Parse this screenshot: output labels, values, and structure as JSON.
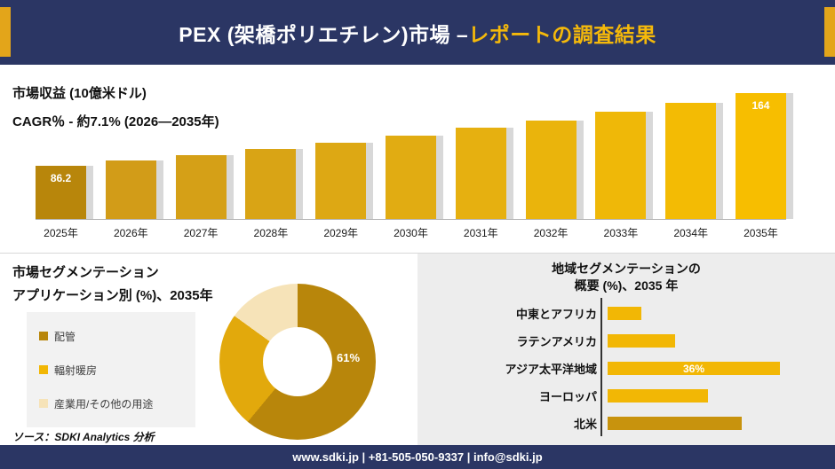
{
  "header": {
    "title_main": "PEX (架橋ポリエチレン)市場 –",
    "title_accent": "レポートの調査結果"
  },
  "revenue": {
    "line1": "市場収益 (10億米ドル)",
    "line2": "CAGR％ - 約7.1% (2026―2035年)"
  },
  "chart_data": [
    {
      "type": "bar",
      "title": "市場収益 (10億米ドル)",
      "categories": [
        "2025年",
        "2026年",
        "2027年",
        "2028年",
        "2029年",
        "2030年",
        "2031年",
        "2032年",
        "2033年",
        "2034年",
        "2035年"
      ],
      "values": [
        86.2,
        91.9,
        98.0,
        104.5,
        111.4,
        118.8,
        126.7,
        135.1,
        144.1,
        153.7,
        164
      ],
      "value_labels": {
        "first": "86.2",
        "last": "164"
      },
      "colors": [
        "#b8860b",
        "#d29c18",
        "#d5a017",
        "#d9a415",
        "#dda814",
        "#e1ac12",
        "#e6b010",
        "#eab40c",
        "#efb808",
        "#f3bb04",
        "#f7be00"
      ],
      "xlabel": "",
      "ylabel": "10億米ドル",
      "grid": false,
      "legend": "none"
    },
    {
      "type": "pie",
      "donut": true,
      "title": "アプリケーション別 (%)、2035年",
      "segments": [
        {
          "label": "配管",
          "value": 61,
          "color": "#b8860b"
        },
        {
          "label": "輻射暖房",
          "value": 24,
          "color": "#e2a90c"
        },
        {
          "label": "産業用/その他の用途",
          "value": 15,
          "color": "#f6e3b8"
        }
      ],
      "shown_label": "61%"
    },
    {
      "type": "bar",
      "orientation": "horizontal",
      "title": "地域セグメンテーションの概要 (%)、2035 年",
      "rows": [
        {
          "label": "中東とアフリカ",
          "value": 7,
          "color": "#f2b705",
          "value_label": ""
        },
        {
          "label": "ラテンアメリカ",
          "value": 14,
          "color": "#f2b705",
          "value_label": ""
        },
        {
          "label": "アジア太平洋地域",
          "value": 36,
          "color": "#f2b705",
          "value_label": "36%"
        },
        {
          "label": "ヨーロッパ",
          "value": 21,
          "color": "#f2b705",
          "value_label": ""
        },
        {
          "label": "北米",
          "value": 28,
          "color": "#c8930d",
          "value_label": ""
        }
      ],
      "grid": false,
      "legend": "none"
    }
  ],
  "segmentation": {
    "title1": "市場セグメンテーション",
    "title2": "アプリケーション別 (%)、2035年",
    "legend": [
      {
        "label": "配管",
        "color": "#b8860b"
      },
      {
        "label": "輻射暖房",
        "color": "#f2b705"
      },
      {
        "label": "産業用/その他の用途",
        "color": "#f6e3b8"
      }
    ],
    "donut_label": "61%"
  },
  "region": {
    "title_line1": "地域セグメンテーションの",
    "title_line2": "概要 (%)、2035 年"
  },
  "source_note": "ソース：SDKI Analytics 分析",
  "footer": {
    "contact": "www.sdki.jp | +81-505-050-9337 | info@sdki.jp"
  },
  "colors": {
    "navy": "#2b3664",
    "gold_accent": "#f5b90a",
    "header_edge": "#e3a51a"
  }
}
